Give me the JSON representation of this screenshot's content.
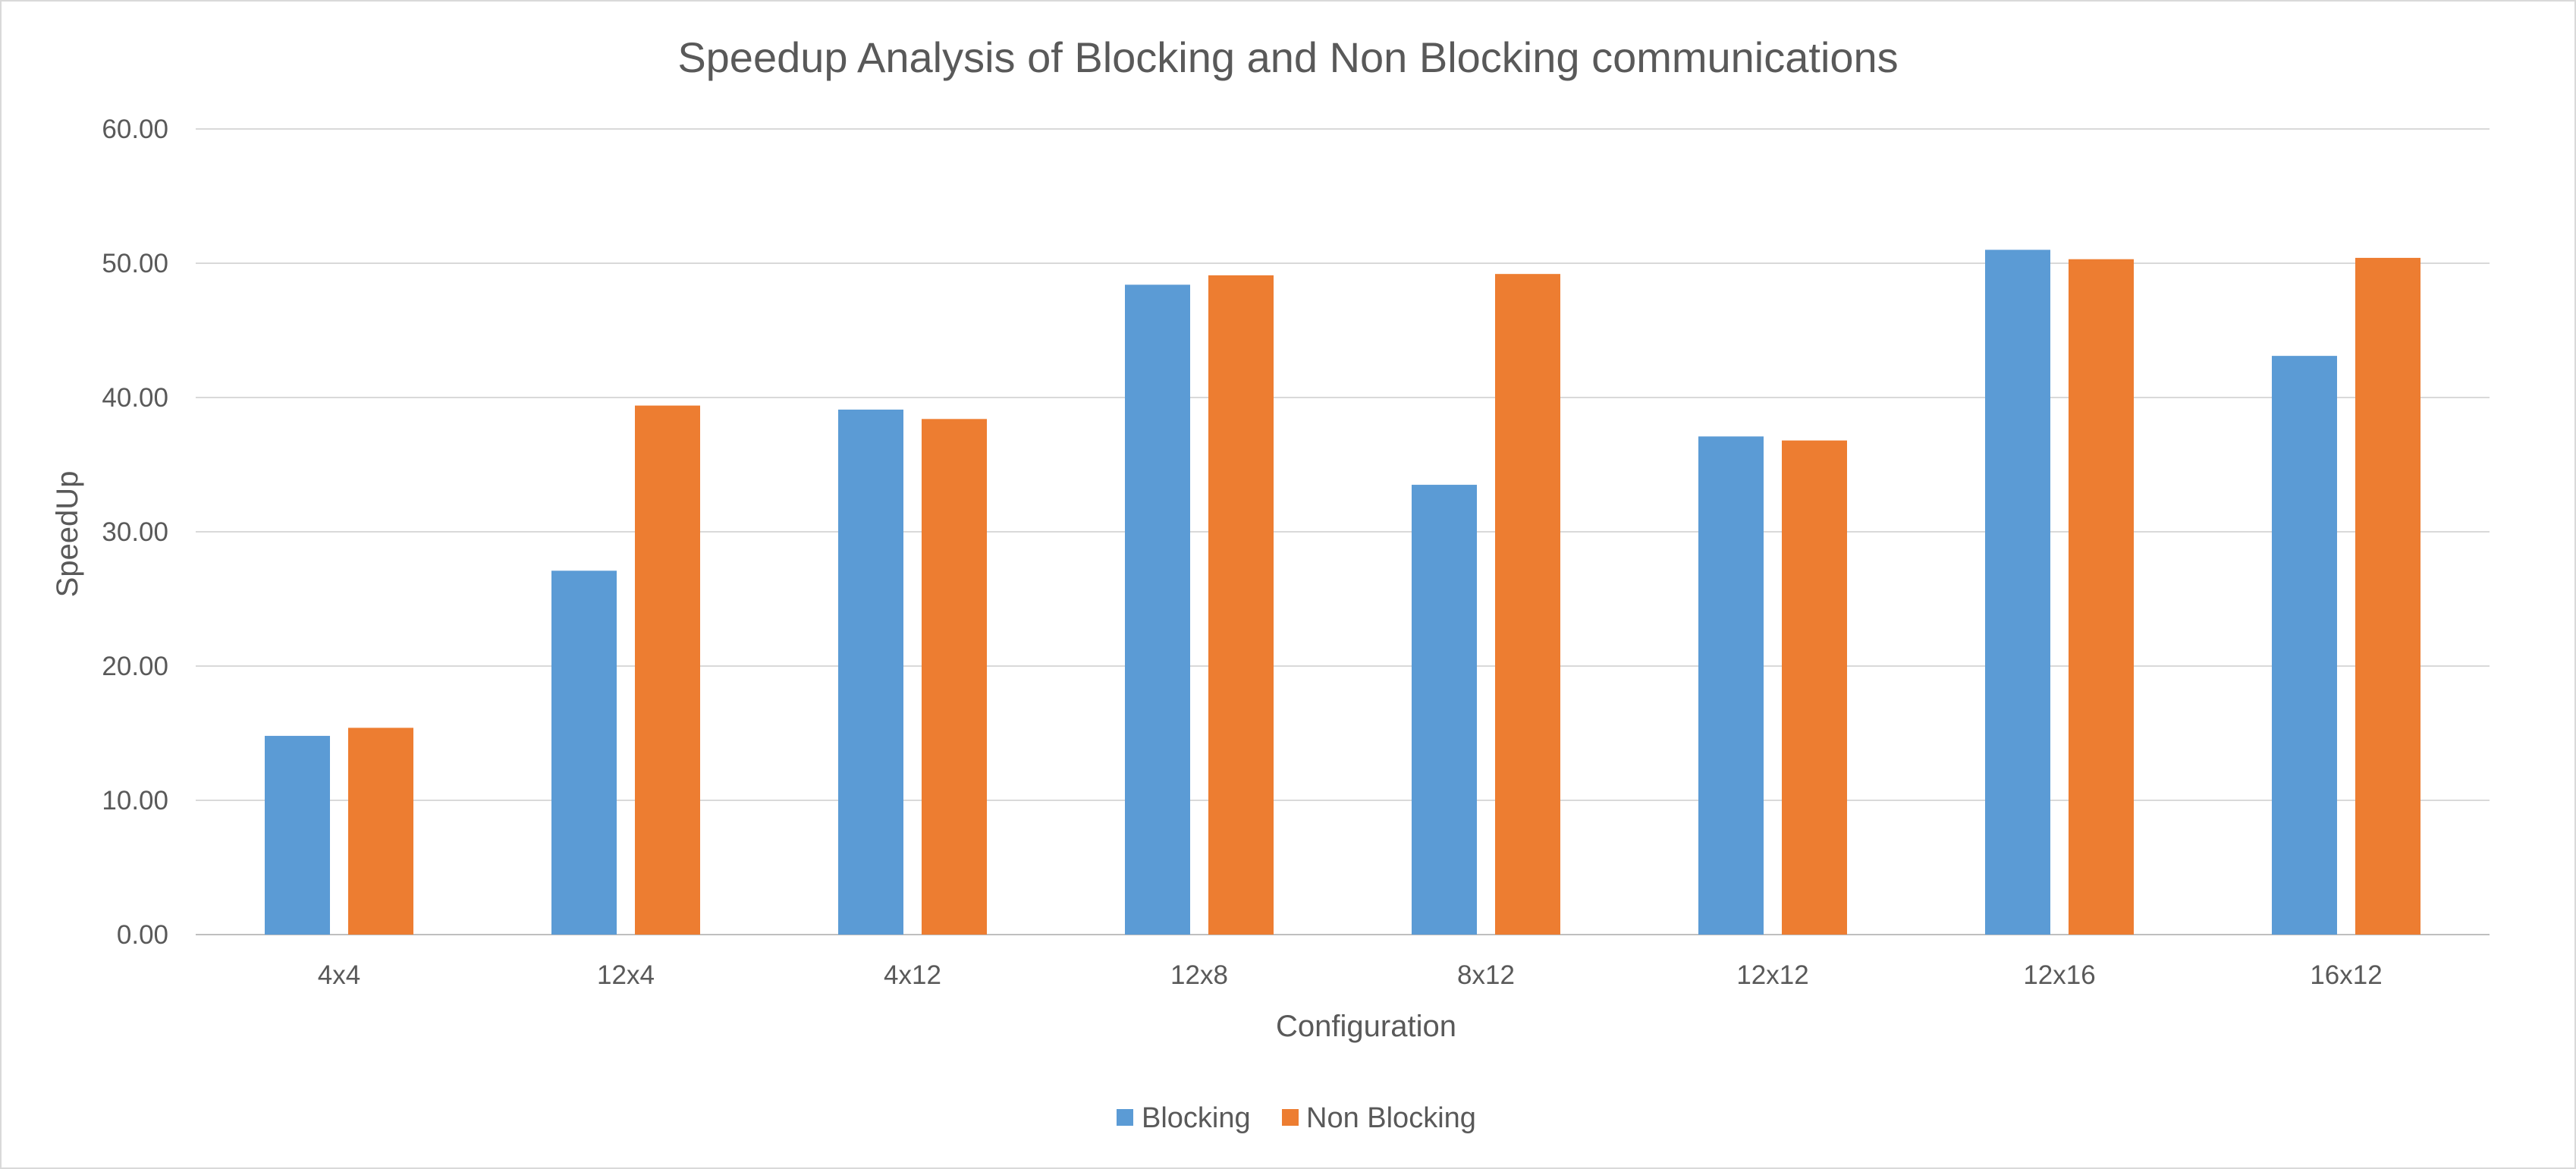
{
  "chart_data": {
    "type": "bar",
    "title": "Speedup Analysis of Blocking and Non Blocking communications",
    "xlabel": "Configuration",
    "ylabel": "SpeedUp",
    "categories": [
      "4x4",
      "12x4",
      "4x12",
      "12x8",
      "8x12",
      "12x12",
      "12x16",
      "16x12"
    ],
    "series": [
      {
        "name": "Blocking",
        "color": "#5b9bd5",
        "values": [
          14.8,
          27.1,
          39.1,
          48.4,
          33.5,
          37.1,
          51.0,
          43.1
        ]
      },
      {
        "name": "Non Blocking",
        "color": "#ed7d31",
        "values": [
          15.4,
          39.4,
          38.4,
          49.1,
          49.2,
          36.8,
          50.3,
          50.4
        ]
      }
    ],
    "ylim": [
      0,
      60
    ],
    "y_ticks": [
      "0.00",
      "10.00",
      "20.00",
      "30.00",
      "40.00",
      "50.00",
      "60.00"
    ],
    "grid": true,
    "legend_position": "bottom"
  }
}
